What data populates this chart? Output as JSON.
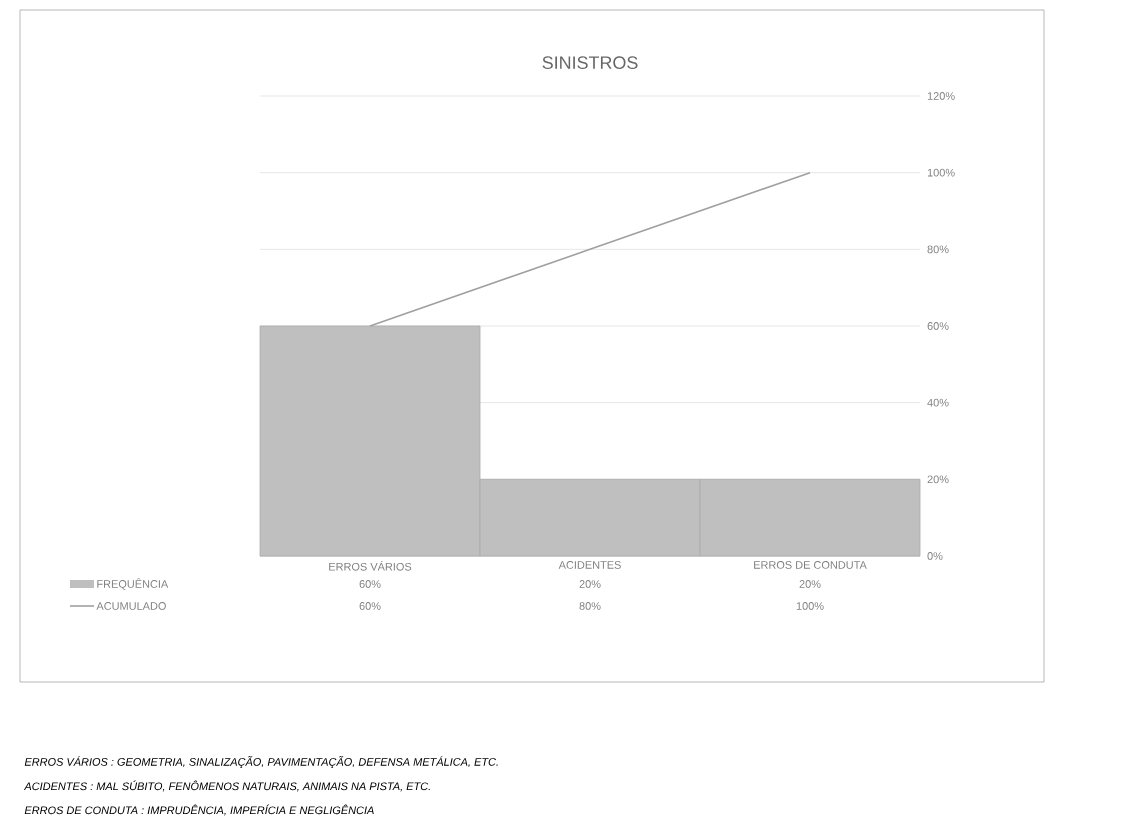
{
  "chart_data": {
    "type": "bar",
    "title": "SINISTROS",
    "categories": [
      "ERROS VÁRIOS",
      "ACIDENTES",
      "ERROS DE CONDUTA"
    ],
    "series": [
      {
        "name": "FREQUÊNCIA",
        "color": "#bfbfbf",
        "values": [
          60,
          20,
          20
        ],
        "value_labels": [
          "60%",
          "20%",
          "20%"
        ]
      },
      {
        "name": "ACUMULADO",
        "type": "line",
        "color": "#a0a0a0",
        "values": [
          60,
          80,
          100
        ],
        "value_labels": [
          "60%",
          "80%",
          "100%"
        ]
      }
    ],
    "ylim": [
      0,
      120
    ],
    "yticks": [
      {
        "value": 0,
        "label": "0%"
      },
      {
        "value": 20,
        "label": "20%"
      },
      {
        "value": 40,
        "label": "40%"
      },
      {
        "value": 60,
        "label": "60%"
      },
      {
        "value": 80,
        "label": "80%"
      },
      {
        "value": 100,
        "label": "100%"
      },
      {
        "value": 120,
        "label": "120%"
      }
    ],
    "grid": "y",
    "legend": "bottom",
    "marker": "none",
    "line_style": "solid",
    "annotations": [
      "ERROS VÁRIOS : GEOMETRIA, SINALIZAÇÃO, PAVIMENTAÇÃO, DEFENSA METÁLICA, ETC.",
      "ACIDENTES : MAL SÚBITO, FENÔMENOS NATURAIS, ANIMAIS NA PISTA, ETC.",
      "ERROS DE CONDUTA : IMPRUDÊNCIA, IMPERÍCIA E NEGLIGÊNCIA"
    ]
  }
}
